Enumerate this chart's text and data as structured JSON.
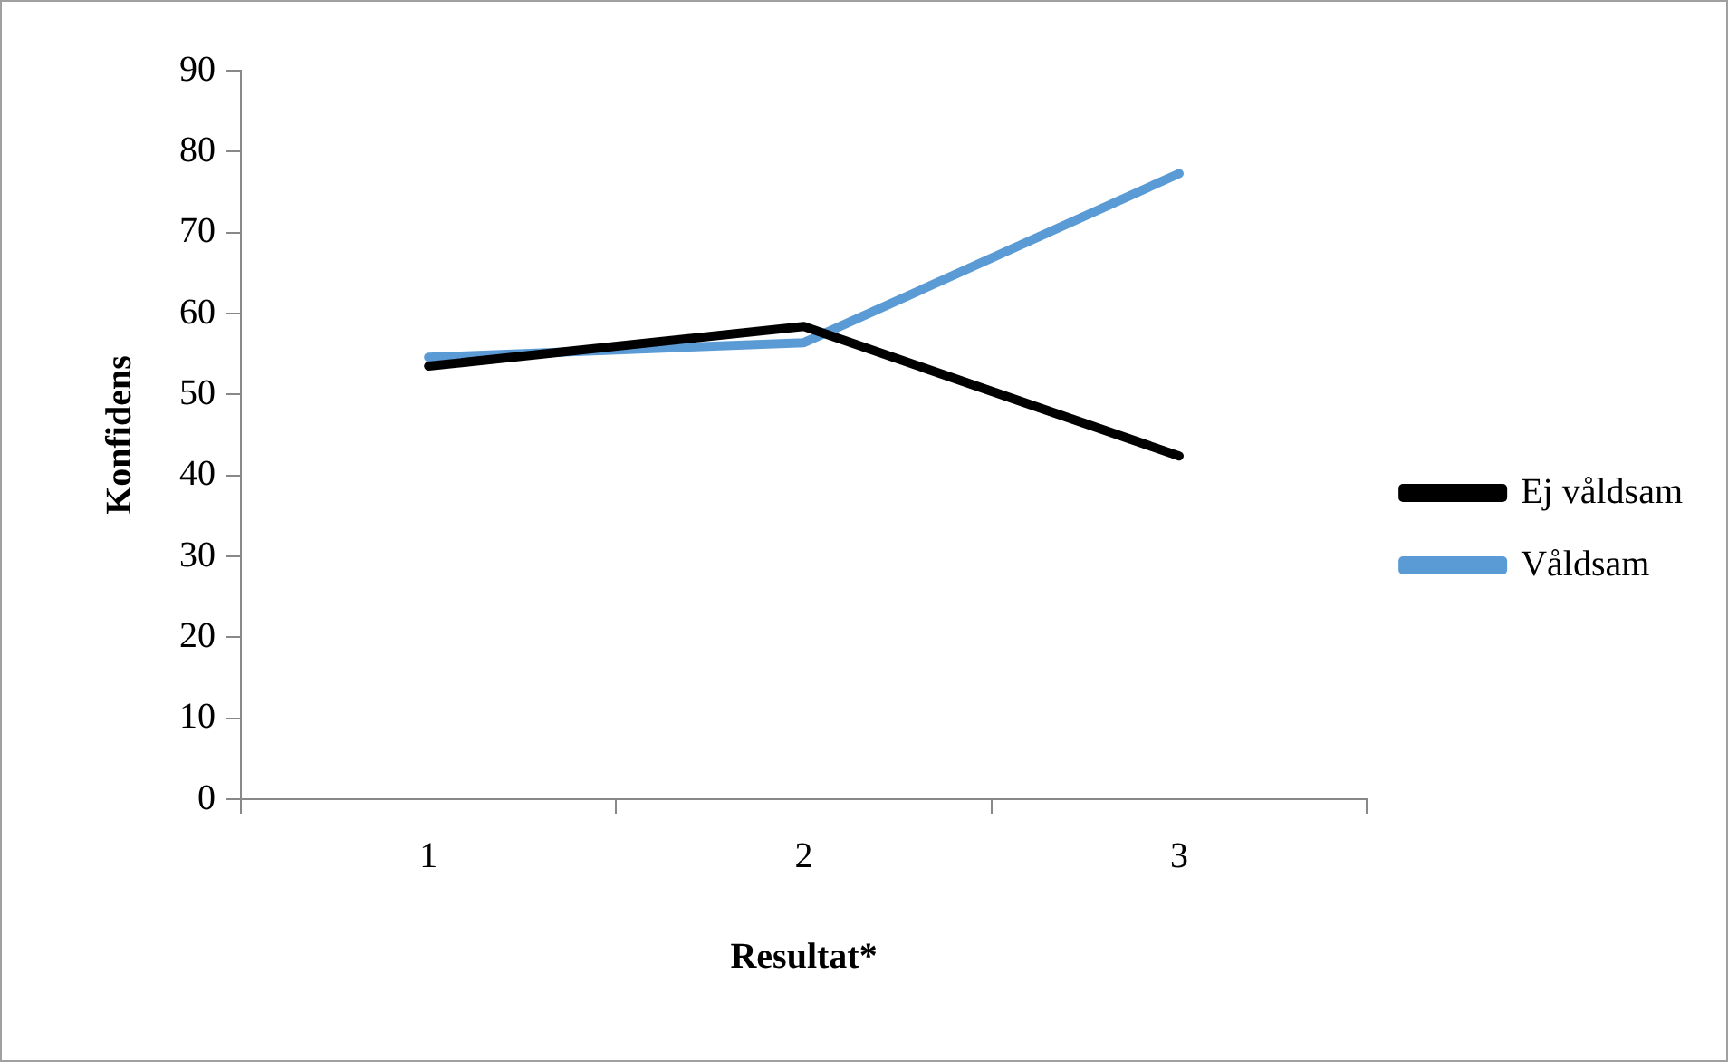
{
  "chart_data": {
    "type": "line",
    "xlabel": "Resultat*",
    "ylabel": "Konfidens",
    "categories": [
      "1",
      "2",
      "3"
    ],
    "series": [
      {
        "name": "Ej våldsam",
        "color": "#000000",
        "values": [
          53.5,
          58.4,
          42.4
        ]
      },
      {
        "name": "Våldsam",
        "color": "#5b9bd5",
        "values": [
          54.6,
          56.4,
          77.3
        ]
      }
    ],
    "ylim": [
      0,
      90
    ],
    "yticks": [
      0,
      10,
      20,
      30,
      40,
      50,
      60,
      70,
      80,
      90
    ],
    "grid": false,
    "legend": "right",
    "marker": "none",
    "line_style": "solid"
  }
}
